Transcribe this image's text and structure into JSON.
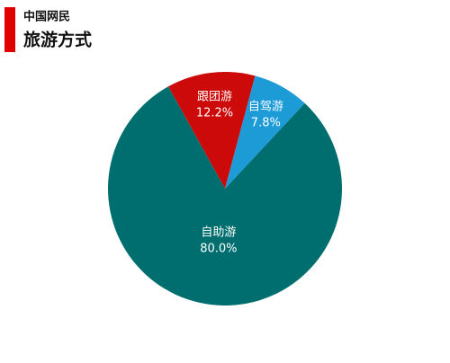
{
  "chart_data": {
    "type": "pie",
    "title": "中国网民",
    "subtitle": "旅游方式",
    "categories": [
      "跟团游",
      "自驾游",
      "自助游"
    ],
    "values": [
      12.2,
      7.8,
      80.0
    ],
    "value_labels": [
      "12.2%",
      "7.8%",
      "80.0%"
    ],
    "colors": [
      "#cc0a0a",
      "#1c9bd7",
      "#006e6e"
    ]
  }
}
